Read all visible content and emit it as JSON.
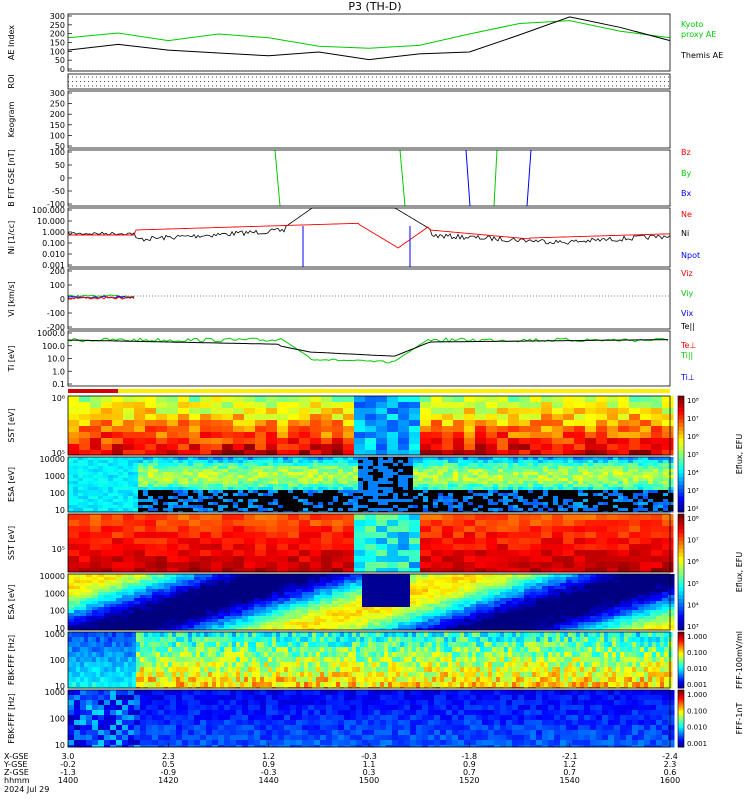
{
  "title": "P3 (TH-D)",
  "date_label": "2024 Jul 29",
  "time_label_row": "hhmm",
  "bottom_rows": [
    {
      "label": "X-GSE",
      "values": [
        "3.0",
        "2.3",
        "1.2",
        "-0.3",
        "-1.8",
        "-2.1",
        "-2.4"
      ]
    },
    {
      "label": "Y-GSE",
      "values": [
        "-0.2",
        "0.5",
        "0.9",
        "1.1",
        "0.9",
        "1.2",
        "2.3"
      ]
    },
    {
      "label": "Z-GSE",
      "values": [
        "-1.3",
        "-0.9",
        "-0.3",
        "0.3",
        "0.7",
        "0.7",
        "0.6"
      ]
    }
  ],
  "time_ticks": [
    "1400",
    "1420",
    "1440",
    "1500",
    "1520",
    "1540",
    "1600"
  ],
  "chart_data": [
    {
      "type": "line",
      "ylabel": "AE Index",
      "ylim": [
        0,
        300
      ],
      "yticks": [
        "300",
        "250",
        "200",
        "150",
        "100",
        "50",
        "0"
      ],
      "x": [
        1400,
        1410,
        1420,
        1430,
        1440,
        1450,
        1500,
        1510,
        1520,
        1530,
        1540,
        1550,
        1600
      ],
      "series": [
        {
          "name": "Kyoto proxy AE",
          "color": "#00cc00",
          "values": [
            175,
            200,
            160,
            195,
            175,
            130,
            120,
            135,
            195,
            250,
            265,
            210,
            175
          ]
        },
        {
          "name": "Themis AE",
          "color": "#000000",
          "values": [
            110,
            140,
            110,
            95,
            80,
            100,
            60,
            90,
            100,
            190,
            285,
            230,
            160
          ]
        }
      ]
    },
    {
      "type": "heatmap",
      "ylabel": "ROI",
      "yticks": []
    },
    {
      "type": "heatmap",
      "ylabel": "Keogram",
      "yticks": [
        "300",
        "250",
        "200",
        "150",
        "100",
        "50"
      ]
    },
    {
      "type": "line",
      "ylabel": "B FIT GSE [nT]",
      "ylim": [
        -100,
        100
      ],
      "yticks": [
        "100",
        "50",
        "0",
        "-50",
        "-100"
      ],
      "legend": [
        {
          "name": "Bz",
          "color": "#ff0000"
        },
        {
          "name": "By",
          "color": "#00cc00"
        },
        {
          "name": "Bx",
          "color": "#0000ff"
        }
      ]
    },
    {
      "type": "line",
      "ylabel": "Ni [1/cc]",
      "yscale": "log",
      "yticks": [
        "100.000",
        "10.000",
        "1.000",
        "0.100",
        "0.010",
        "0.001"
      ],
      "legend": [
        {
          "name": "Ne",
          "color": "#ff0000"
        },
        {
          "name": "Ni",
          "color": "#000000"
        },
        {
          "name": "Npot",
          "color": "#0000ff"
        }
      ]
    },
    {
      "type": "line",
      "ylabel": "Vi [km/s]",
      "ylim": [
        -300,
        300
      ],
      "yticks": [
        "200",
        "100",
        "0",
        "-100",
        "-200"
      ],
      "legend": [
        {
          "name": "Viz",
          "color": "#ff0000"
        },
        {
          "name": "Viy",
          "color": "#00cc00"
        },
        {
          "name": "Vix",
          "color": "#0000ff"
        }
      ]
    },
    {
      "type": "line",
      "ylabel": "Ti [eV]",
      "yscale": "log",
      "yticks": [
        "1000.0",
        "100.0",
        "10.0",
        "1.0",
        "0.1"
      ],
      "legend": [
        {
          "name": "Te||",
          "color": "#000000"
        },
        {
          "name": "Te⊥",
          "color": "#ff0000"
        },
        {
          "name": "Ti||",
          "color": "#00cc00"
        },
        {
          "name": "Ti⊥",
          "color": "#0000ff"
        }
      ]
    },
    {
      "type": "heatmap",
      "ylabel": "SST [eV]",
      "yticks": [
        "10⁶",
        "10⁵"
      ],
      "colorbar_label": "Eflux, EFU"
    },
    {
      "type": "heatmap",
      "ylabel": "ESA [eV]",
      "yticks": [
        "10000",
        "1000",
        "100",
        "10"
      ],
      "colorbar_label": "Eflux, EFU"
    },
    {
      "type": "heatmap",
      "ylabel": "SST [eV]",
      "yticks": [
        "10⁵"
      ],
      "colorbar_label": "Eflux, EFU"
    },
    {
      "type": "heatmap",
      "ylabel": "ESA [eV]",
      "yticks": [
        "10000",
        "1000",
        "100",
        "10"
      ],
      "colorbar_label": "Eflux, EFU"
    },
    {
      "type": "heatmap",
      "ylabel": "FBK-FFF [Hz]",
      "yticks": [
        "1000",
        "100",
        "10"
      ],
      "colorbar_label": "FFF-100mV/ml"
    },
    {
      "type": "heatmap",
      "ylabel": "FBK-FFF [Hz]",
      "yticks": [
        "1000",
        "100",
        "10"
      ],
      "colorbar_label": "FFF-1nT"
    }
  ],
  "colorbars": [
    {
      "ticks": [
        "10⁸",
        "10⁷",
        "10⁶",
        "10⁵",
        "10⁴",
        "10³",
        "10²"
      ],
      "label": "Eflux, EFU"
    },
    {
      "ticks": [
        "10⁸",
        "10⁷",
        "10⁶",
        "10⁵",
        "10⁴",
        "10³"
      ],
      "label": "Eflux, EFU"
    },
    {
      "ticks": [
        "1.000",
        "0.100",
        "0.010",
        "0.001"
      ],
      "label": "FFF-100mV/ml"
    },
    {
      "ticks": [
        "1.000",
        "0.100",
        "0.010",
        "0.001"
      ],
      "label": "FFF-1nT"
    }
  ]
}
